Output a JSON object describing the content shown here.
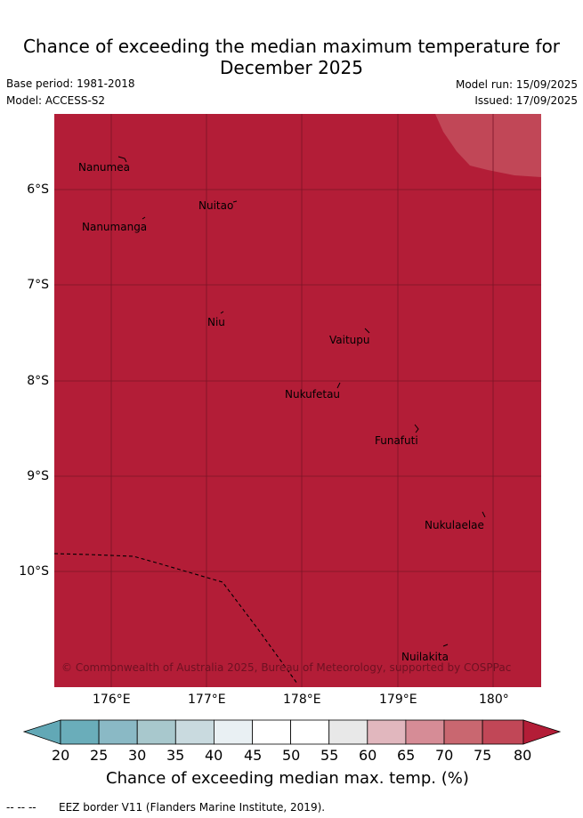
{
  "header": {
    "title_line1": "Chance of exceeding the median maximum temperature for",
    "title_line2": "December 2025",
    "base_period": "Base period: 1981-2018",
    "model": "Model: ACCESS-S2",
    "model_run": "Model run: 15/09/2025",
    "issued": "Issued: 17/09/2025"
  },
  "map": {
    "background_color": "#b31d37",
    "high_zone_color": "#c14757",
    "lat_ticks": [
      "6°S",
      "7°S",
      "8°S",
      "9°S",
      "10°S"
    ],
    "lon_ticks": [
      "176°E",
      "177°E",
      "178°E",
      "179°E",
      "180°"
    ],
    "islands": [
      {
        "name": "Nanumea"
      },
      {
        "name": "Nuitao"
      },
      {
        "name": "Nanumanga"
      },
      {
        "name": "Niu"
      },
      {
        "name": "Vaitupu"
      },
      {
        "name": "Nukufetau"
      },
      {
        "name": "Funafuti"
      },
      {
        "name": "Nukulaelae"
      },
      {
        "name": "Nuilakita"
      }
    ],
    "copyright": "© Commonwealth of Australia 2025, Bureau of Meteorology, supported by COSPPac"
  },
  "colorbar": {
    "labels": [
      "20",
      "25",
      "30",
      "35",
      "40",
      "45",
      "50",
      "55",
      "60",
      "65",
      "70",
      "75",
      "80"
    ],
    "colors": [
      "#62a8b6",
      "#6aadba",
      "#8ab9c5",
      "#a8c8cd",
      "#c9dadf",
      "#e9f0f3",
      "#ffffff",
      "#ffffff",
      "#e8e8e8",
      "#e1b7be",
      "#d68c96",
      "#c96770",
      "#c14757",
      "#b31d37"
    ],
    "title": "Chance of exceeding median max. temp. (%)"
  },
  "legend": {
    "eez_marker": "-- -- --",
    "eez_label": "EEZ border V11 (Flanders Marine Institute, 2019)."
  }
}
